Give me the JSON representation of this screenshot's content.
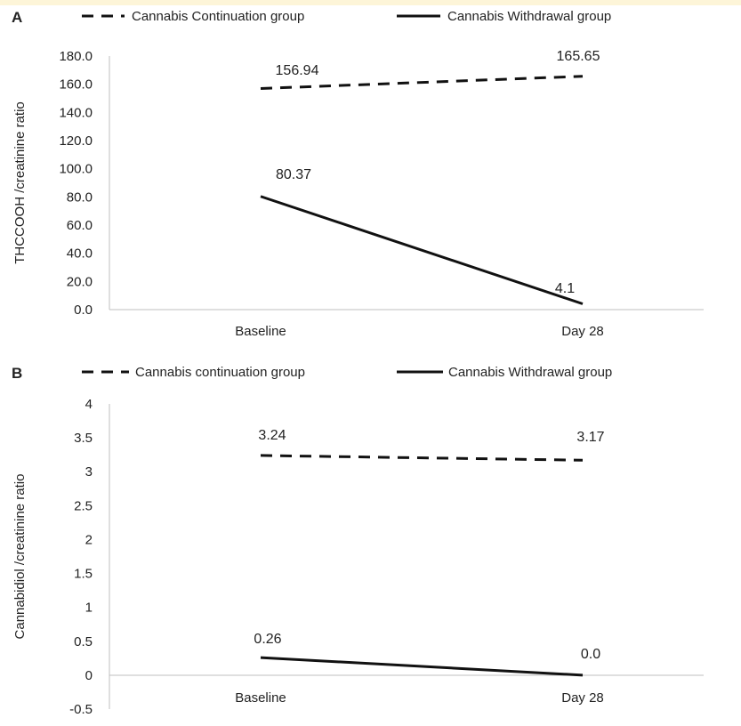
{
  "chart_data": [
    {
      "type": "line",
      "panel": "A",
      "categories": [
        "Baseline",
        "Day 28"
      ],
      "ylabel": "THCCOOH /creatinine ratio",
      "ylim": [
        0,
        180
      ],
      "yticks": [
        "0.0",
        "20.0",
        "40.0",
        "60.0",
        "80.0",
        "100.0",
        "120.0",
        "140.0",
        "160.0",
        "180.0"
      ],
      "series": [
        {
          "name": "Cannabis Continuation group",
          "style": "dashed",
          "values": [
            156.94,
            165.65
          ],
          "labels": [
            "156.94",
            "165.65"
          ]
        },
        {
          "name": "Cannabis Withdrawal group",
          "style": "solid",
          "values": [
            80.37,
            4.1
          ],
          "labels": [
            "80.37",
            "4.1"
          ]
        }
      ],
      "grid": false,
      "legend_position": "top"
    },
    {
      "type": "line",
      "panel": "B",
      "categories": [
        "Baseline",
        "Day 28"
      ],
      "ylabel": "Cannabidiol /creatinine ratio",
      "ylim": [
        -0.5,
        4
      ],
      "yticks": [
        "-0.5",
        "0",
        "0.5",
        "1",
        "1.5",
        "2",
        "2.5",
        "3",
        "3.5",
        "4"
      ],
      "series": [
        {
          "name": "Cannabis continuation group",
          "style": "dashed",
          "values": [
            3.24,
            3.17
          ],
          "labels": [
            "3.24",
            "3.17"
          ]
        },
        {
          "name": "Cannabis Withdrawal group",
          "style": "solid",
          "values": [
            0.26,
            0.0
          ],
          "labels": [
            "0.26",
            "0.0"
          ]
        }
      ],
      "grid": false,
      "legend_position": "top"
    }
  ],
  "colors": {
    "line": "#111111",
    "axis": "#bfbfbf",
    "top_band": "#fdf5d8"
  }
}
